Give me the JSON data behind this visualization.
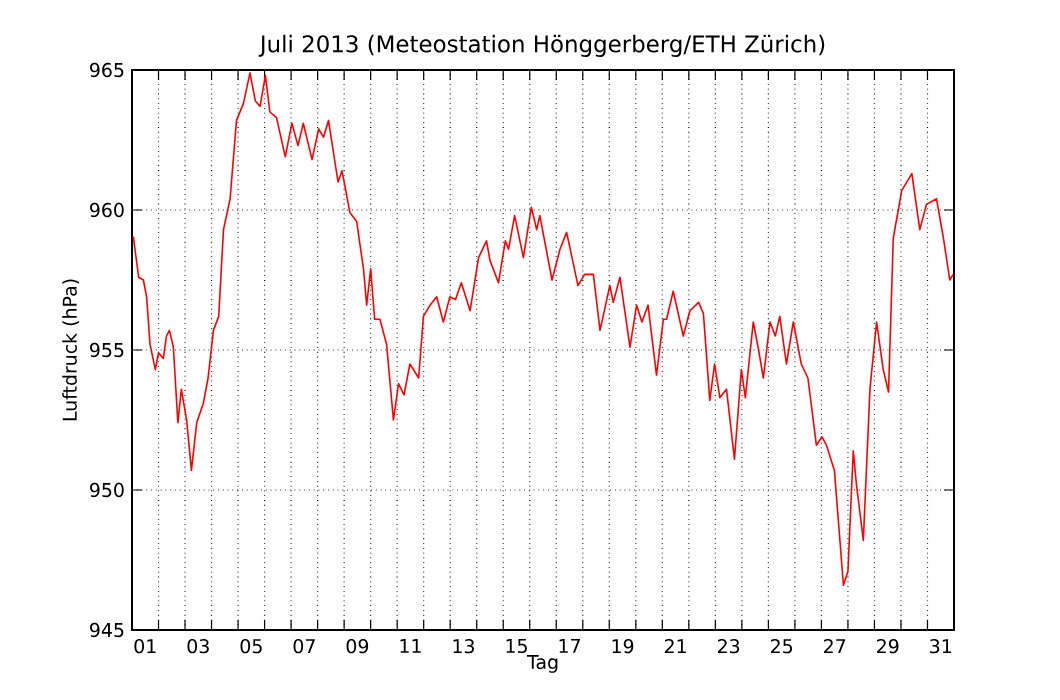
{
  "chart_data": {
    "type": "line",
    "title": "Juli 2013  (Meteostation Hönggerberg/ETH Zürich)",
    "xlabel": "Tag",
    "ylabel": "Luftdruck (hPa)",
    "x": [
      1.05,
      1.25,
      1.43,
      1.55,
      1.68,
      1.88,
      2.0,
      2.18,
      2.3,
      2.41,
      2.56,
      2.73,
      2.86,
      3.06,
      3.24,
      3.44,
      3.69,
      3.87,
      4.07,
      4.27,
      4.45,
      4.7,
      4.94,
      5.2,
      5.45,
      5.65,
      5.83,
      6.03,
      6.2,
      6.45,
      6.78,
      7.03,
      7.26,
      7.46,
      7.79,
      8.04,
      8.22,
      8.41,
      8.77,
      8.92,
      9.22,
      9.47,
      9.73,
      9.85,
      10.0,
      10.15,
      10.35,
      10.6,
      10.86,
      11.05,
      11.26,
      11.48,
      11.81,
      11.99,
      12.24,
      12.49,
      12.74,
      12.99,
      13.2,
      13.42,
      13.75,
      14.07,
      14.37,
      14.5,
      14.82,
      15.08,
      15.2,
      15.43,
      15.76,
      16.06,
      16.26,
      16.38,
      16.84,
      17.14,
      17.39,
      17.82,
      18.07,
      18.4,
      18.65,
      19.02,
      19.15,
      19.4,
      19.78,
      20.03,
      20.23,
      20.46,
      20.78,
      21.04,
      21.16,
      21.41,
      21.79,
      22.04,
      22.37,
      22.55,
      22.79,
      22.97,
      23.17,
      23.42,
      23.72,
      23.98,
      24.13,
      24.43,
      24.63,
      24.81,
      25.06,
      25.26,
      25.43,
      25.68,
      25.94,
      26.24,
      26.49,
      26.81,
      27.02,
      27.19,
      27.49,
      27.83,
      28.0,
      28.2,
      28.32,
      28.58,
      28.83,
      29.08,
      29.33,
      29.53,
      29.71,
      30.03,
      30.41,
      30.71,
      30.96,
      31.34,
      31.6,
      31.84,
      31.97
    ],
    "series": [
      {
        "color": "#ff0000",
        "values": [
          959.05,
          957.6,
          957.5,
          956.9,
          955.2,
          954.3,
          954.9,
          954.7,
          955.5,
          955.7,
          955.1,
          952.4,
          953.6,
          952.5,
          950.7,
          952.4,
          953.1,
          954.0,
          955.7,
          956.2,
          959.3,
          960.4,
          963.2,
          963.8,
          964.9,
          963.9,
          963.7,
          964.8,
          963.5,
          963.3,
          961.9,
          963.1,
          962.3,
          963.1,
          961.8,
          962.9,
          962.6,
          963.2,
          961.0,
          961.4,
          959.9,
          959.6,
          957.9,
          956.6,
          957.9,
          956.1,
          956.1,
          955.2,
          952.5,
          953.8,
          953.4,
          954.5,
          954.0,
          956.2,
          956.6,
          956.9,
          956.0,
          956.9,
          956.8,
          957.4,
          956.4,
          958.3,
          958.9,
          958.2,
          957.4,
          958.9,
          958.6,
          959.8,
          958.3,
          960.1,
          959.3,
          959.8,
          957.5,
          958.6,
          959.2,
          957.3,
          957.7,
          957.7,
          955.7,
          957.3,
          956.7,
          957.6,
          955.1,
          956.6,
          956.0,
          956.6,
          954.1,
          956.1,
          956.1,
          957.1,
          955.5,
          956.4,
          956.7,
          956.3,
          953.2,
          954.5,
          953.3,
          953.6,
          951.1,
          954.3,
          953.3,
          956.0,
          955.0,
          954.0,
          956.0,
          955.5,
          956.2,
          954.5,
          956.0,
          954.5,
          954.0,
          951.6,
          951.9,
          951.6,
          950.7,
          946.6,
          947.1,
          951.4,
          950.2,
          948.2,
          953.6,
          956.0,
          954.3,
          953.5,
          959.0,
          960.7,
          961.3,
          959.3,
          960.2,
          960.4,
          959.0,
          957.5,
          957.7
        ]
      }
    ],
    "xlim": [
      1,
      32
    ],
    "ylim": [
      945,
      965
    ],
    "xticks": [
      {
        "value": 1.5,
        "label": "01"
      },
      {
        "value": 3.5,
        "label": "03"
      },
      {
        "value": 5.5,
        "label": "05"
      },
      {
        "value": 7.5,
        "label": "07"
      },
      {
        "value": 9.5,
        "label": "09"
      },
      {
        "value": 11.5,
        "label": "11"
      },
      {
        "value": 13.5,
        "label": "13"
      },
      {
        "value": 15.5,
        "label": "15"
      },
      {
        "value": 17.5,
        "label": "17"
      },
      {
        "value": 19.5,
        "label": "19"
      },
      {
        "value": 21.5,
        "label": "21"
      },
      {
        "value": 23.5,
        "label": "23"
      },
      {
        "value": 25.5,
        "label": "25"
      },
      {
        "value": 27.5,
        "label": "27"
      },
      {
        "value": 29.5,
        "label": "29"
      },
      {
        "value": 31.5,
        "label": "31"
      },
      {
        "value": 2,
        "label": null
      },
      {
        "value": 3,
        "label": null
      },
      {
        "value": 4,
        "label": null
      },
      {
        "value": 5,
        "label": null
      },
      {
        "value": 6,
        "label": null
      },
      {
        "value": 7,
        "label": null
      },
      {
        "value": 8,
        "label": null
      },
      {
        "value": 9,
        "label": null
      },
      {
        "value": 10,
        "label": null
      },
      {
        "value": 11,
        "label": null
      },
      {
        "value": 12,
        "label": null
      },
      {
        "value": 13,
        "label": null
      },
      {
        "value": 14,
        "label": null
      },
      {
        "value": 15,
        "label": null
      },
      {
        "value": 16,
        "label": null
      },
      {
        "value": 17,
        "label": null
      },
      {
        "value": 18,
        "label": null
      },
      {
        "value": 19,
        "label": null
      },
      {
        "value": 20,
        "label": null
      },
      {
        "value": 21,
        "label": null
      },
      {
        "value": 22,
        "label": null
      },
      {
        "value": 23,
        "label": null
      },
      {
        "value": 24,
        "label": null
      },
      {
        "value": 25,
        "label": null
      },
      {
        "value": 26,
        "label": null
      },
      {
        "value": 27,
        "label": null
      },
      {
        "value": 28,
        "label": null
      },
      {
        "value": 29,
        "label": null
      },
      {
        "value": 30,
        "label": null
      },
      {
        "value": 31,
        "label": null
      }
    ],
    "yticks": [
      945,
      950,
      955,
      960,
      965
    ],
    "grid": true,
    "marker": "none",
    "line_style": "solid"
  }
}
